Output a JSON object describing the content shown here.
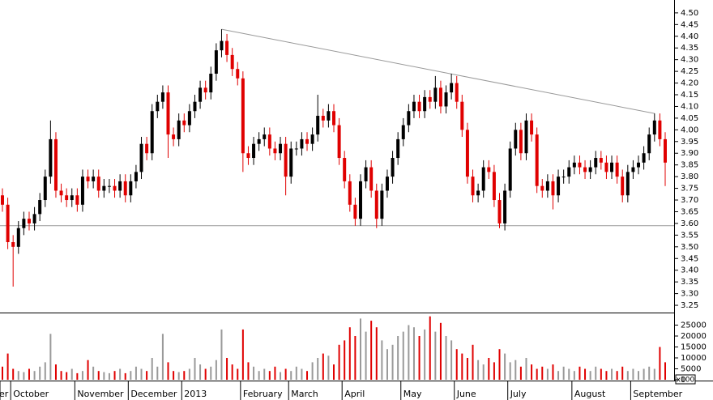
{
  "chart_data": [
    {
      "type": "candlestick",
      "open": [
        3.72,
        3.68,
        3.52,
        3.5,
        3.58,
        3.62,
        3.6,
        3.64,
        3.7,
        3.8,
        3.96,
        3.74,
        3.72,
        3.7,
        3.72,
        3.68,
        3.8,
        3.78,
        3.8,
        3.74,
        3.76,
        3.76,
        3.74,
        3.78,
        3.72,
        3.78,
        3.82,
        3.94,
        3.9,
        4.08,
        4.12,
        4.16,
        3.98,
        3.96,
        4.04,
        4.02,
        4.08,
        4.12,
        4.18,
        4.16,
        4.24,
        4.34,
        4.38,
        4.32,
        4.26,
        4.22,
        3.9,
        3.88,
        3.94,
        3.96,
        3.98,
        3.92,
        3.9,
        3.94,
        3.8,
        3.92,
        3.92,
        3.96,
        3.94,
        3.98,
        4.06,
        4.04,
        4.08,
        4.02,
        3.88,
        3.78,
        3.68,
        3.62,
        3.78,
        3.84,
        3.74,
        3.62,
        3.74,
        3.8,
        3.88,
        3.96,
        4.02,
        4.08,
        4.12,
        4.08,
        4.14,
        4.12,
        4.18,
        4.1,
        4.16,
        4.2,
        4.12,
        4.0,
        3.8,
        3.72,
        3.74,
        3.84,
        3.82,
        3.7,
        3.6,
        3.74,
        3.92,
        4.0,
        3.9,
        4.04,
        3.98,
        3.76,
        3.74,
        3.78,
        3.72,
        3.8,
        3.8,
        3.84,
        3.86,
        3.84,
        3.82,
        3.84,
        3.88,
        3.86,
        3.82,
        3.86,
        3.8,
        3.72,
        3.82,
        3.84,
        3.86,
        3.9,
        3.98,
        4.04,
        3.96
      ],
      "high": [
        3.75,
        3.71,
        3.55,
        3.61,
        3.65,
        3.65,
        3.67,
        3.73,
        3.83,
        4.04,
        3.99,
        3.77,
        3.75,
        3.75,
        3.75,
        3.83,
        3.83,
        3.83,
        3.83,
        3.79,
        3.79,
        3.79,
        3.81,
        3.81,
        3.81,
        3.85,
        3.97,
        3.97,
        4.11,
        4.15,
        4.19,
        4.19,
        4.01,
        4.07,
        4.07,
        4.11,
        4.15,
        4.21,
        4.21,
        4.27,
        4.37,
        4.43,
        4.41,
        4.35,
        4.29,
        4.25,
        3.93,
        3.97,
        3.99,
        4.01,
        4.01,
        3.95,
        3.97,
        3.97,
        3.95,
        3.95,
        3.99,
        3.99,
        4.01,
        4.15,
        4.09,
        4.11,
        4.11,
        4.05,
        3.91,
        3.81,
        3.71,
        3.81,
        3.87,
        3.87,
        3.77,
        3.77,
        3.83,
        3.91,
        3.99,
        4.05,
        4.11,
        4.15,
        4.15,
        4.17,
        4.17,
        4.23,
        4.21,
        4.19,
        4.24,
        4.23,
        4.15,
        4.03,
        3.83,
        3.77,
        3.87,
        3.87,
        3.85,
        3.73,
        3.77,
        3.95,
        4.03,
        4.03,
        4.07,
        4.07,
        4.01,
        3.79,
        3.81,
        3.81,
        3.83,
        3.83,
        3.87,
        3.89,
        3.89,
        3.87,
        3.87,
        3.91,
        3.91,
        3.89,
        3.89,
        3.89,
        3.83,
        3.85,
        3.87,
        3.89,
        3.93,
        4.01,
        4.07,
        4.07,
        3.99
      ],
      "low": [
        3.65,
        3.49,
        3.33,
        3.47,
        3.55,
        3.57,
        3.57,
        3.61,
        3.67,
        3.77,
        3.71,
        3.69,
        3.67,
        3.67,
        3.65,
        3.65,
        3.75,
        3.75,
        3.71,
        3.71,
        3.73,
        3.71,
        3.71,
        3.69,
        3.69,
        3.75,
        3.79,
        3.87,
        3.87,
        4.05,
        4.09,
        3.88,
        3.93,
        3.93,
        3.99,
        3.99,
        4.05,
        4.09,
        4.13,
        4.13,
        4.21,
        4.31,
        4.29,
        4.23,
        4.19,
        3.82,
        3.85,
        3.85,
        3.91,
        3.93,
        3.89,
        3.87,
        3.87,
        3.72,
        3.77,
        3.89,
        3.89,
        3.91,
        3.91,
        3.95,
        4.01,
        4.01,
        3.99,
        3.85,
        3.75,
        3.65,
        3.59,
        3.59,
        3.75,
        3.71,
        3.58,
        3.59,
        3.71,
        3.77,
        3.85,
        3.93,
        3.99,
        4.05,
        4.05,
        4.05,
        4.09,
        4.09,
        4.07,
        4.07,
        4.13,
        4.09,
        3.97,
        3.77,
        3.69,
        3.69,
        3.71,
        3.79,
        3.67,
        3.58,
        3.57,
        3.71,
        3.89,
        3.87,
        3.87,
        3.95,
        3.73,
        3.71,
        3.71,
        3.66,
        3.69,
        3.77,
        3.77,
        3.81,
        3.81,
        3.79,
        3.79,
        3.81,
        3.83,
        3.79,
        3.79,
        3.77,
        3.69,
        3.69,
        3.79,
        3.81,
        3.83,
        3.87,
        3.95,
        3.93,
        3.76
      ],
      "close": [
        3.68,
        3.52,
        3.5,
        3.58,
        3.62,
        3.6,
        3.64,
        3.7,
        3.8,
        3.96,
        3.74,
        3.72,
        3.7,
        3.72,
        3.68,
        3.8,
        3.78,
        3.8,
        3.74,
        3.76,
        3.76,
        3.74,
        3.78,
        3.72,
        3.78,
        3.82,
        3.94,
        3.9,
        4.08,
        4.12,
        4.16,
        3.98,
        3.96,
        4.04,
        4.02,
        4.08,
        4.12,
        4.18,
        4.16,
        4.24,
        4.34,
        4.38,
        4.32,
        4.26,
        4.22,
        3.9,
        3.88,
        3.94,
        3.96,
        3.98,
        3.92,
        3.9,
        3.94,
        3.8,
        3.92,
        3.92,
        3.96,
        3.94,
        3.98,
        4.06,
        4.04,
        4.08,
        4.02,
        3.88,
        3.78,
        3.68,
        3.62,
        3.78,
        3.84,
        3.74,
        3.62,
        3.74,
        3.8,
        3.88,
        3.96,
        4.02,
        4.08,
        4.12,
        4.08,
        4.14,
        4.12,
        4.18,
        4.1,
        4.16,
        4.2,
        4.12,
        4.0,
        3.8,
        3.72,
        3.74,
        3.84,
        3.82,
        3.7,
        3.6,
        3.74,
        3.92,
        4.0,
        3.9,
        4.04,
        3.98,
        3.76,
        3.74,
        3.78,
        3.72,
        3.8,
        3.8,
        3.84,
        3.86,
        3.84,
        3.82,
        3.84,
        3.88,
        3.86,
        3.82,
        3.86,
        3.8,
        3.72,
        3.82,
        3.84,
        3.86,
        3.9,
        3.98,
        4.04,
        3.96,
        3.86
      ],
      "up_color": "#000000",
      "down_color": "#e00000",
      "ylim": [
        3.219,
        4.555
      ],
      "yticks": [
        3.25,
        {
          "value": 3.3,
          "label": "3.30"
        },
        3.35,
        {
          "value": 3.4,
          "label": "3.40"
        },
        3.45,
        {
          "value": 3.5,
          "label": "3.50"
        },
        3.55,
        {
          "value": 3.6,
          "label": "3.60"
        },
        3.65,
        {
          "value": 3.7,
          "label": "3.70"
        },
        3.75,
        {
          "value": 3.8,
          "label": "3.80"
        },
        3.85,
        {
          "value": 3.9,
          "label": "3.90"
        },
        3.95,
        {
          "value": 4,
          "label": "4.00"
        },
        4.05,
        {
          "value": 4.1,
          "label": "4.10"
        },
        4.15,
        {
          "value": 4.2,
          "label": "4.20"
        },
        4.25,
        {
          "value": 4.3,
          "label": "4.30"
        },
        4.35,
        {
          "value": 4.4,
          "label": "4.40"
        },
        4.45,
        {
          "value": 4.5,
          "label": "4.50"
        }
      ],
      "trendline": {
        "x": [
          41,
          122
        ],
        "values": [
          4.43,
          4.07
        ]
      },
      "support": 3.59
    },
    {
      "type": "bar",
      "values": [
        6000,
        12000,
        5000,
        4000,
        3500,
        5000,
        4000,
        6000,
        8000,
        21000,
        7000,
        4000,
        3500,
        5000,
        3000,
        4000,
        9000,
        6000,
        4000,
        3500,
        3000,
        4000,
        5000,
        3000,
        4000,
        6000,
        5000,
        4000,
        10000,
        6000,
        21000,
        8000,
        4000,
        3500,
        4000,
        5000,
        10000,
        7000,
        5000,
        6000,
        9000,
        23000,
        10000,
        7000,
        5000,
        23000,
        8000,
        6000,
        4000,
        5000,
        4000,
        6000,
        3500,
        5000,
        4000,
        6000,
        5000,
        4000,
        8000,
        10000,
        12000,
        11000,
        7000,
        16000,
        18000,
        24000,
        20000,
        28000,
        22000,
        27000,
        24000,
        18000,
        14000,
        16000,
        20000,
        22000,
        25000,
        24000,
        20000,
        23000,
        29000,
        22000,
        26000,
        20000,
        18000,
        14000,
        12000,
        10000,
        16000,
        9000,
        7000,
        10000,
        8000,
        14000,
        12000,
        8000,
        9000,
        6000,
        10000,
        7000,
        5000,
        6000,
        5000,
        7000,
        4000,
        6000,
        5000,
        4000,
        6000,
        5000,
        4000,
        6000,
        5000,
        4000,
        5000,
        4000,
        6000,
        4000,
        5000,
        4000,
        5000,
        6000,
        5000,
        15000,
        8000
      ],
      "up_color": "#999999",
      "down_color": "#e00000",
      "ylim": [
        0,
        30000
      ],
      "yticks": [
        0,
        5000,
        10000,
        15000,
        20000,
        25000
      ],
      "unit_label": "x100",
      "month_labels": [
        "er",
        "October",
        "November",
        "December",
        "2013",
        "February",
        "March",
        "April",
        "May",
        "June",
        "July",
        "August",
        "September"
      ],
      "month_starts": [
        0,
        2,
        14,
        24,
        34,
        45,
        54,
        64,
        75,
        85,
        95,
        107,
        118
      ]
    }
  ]
}
